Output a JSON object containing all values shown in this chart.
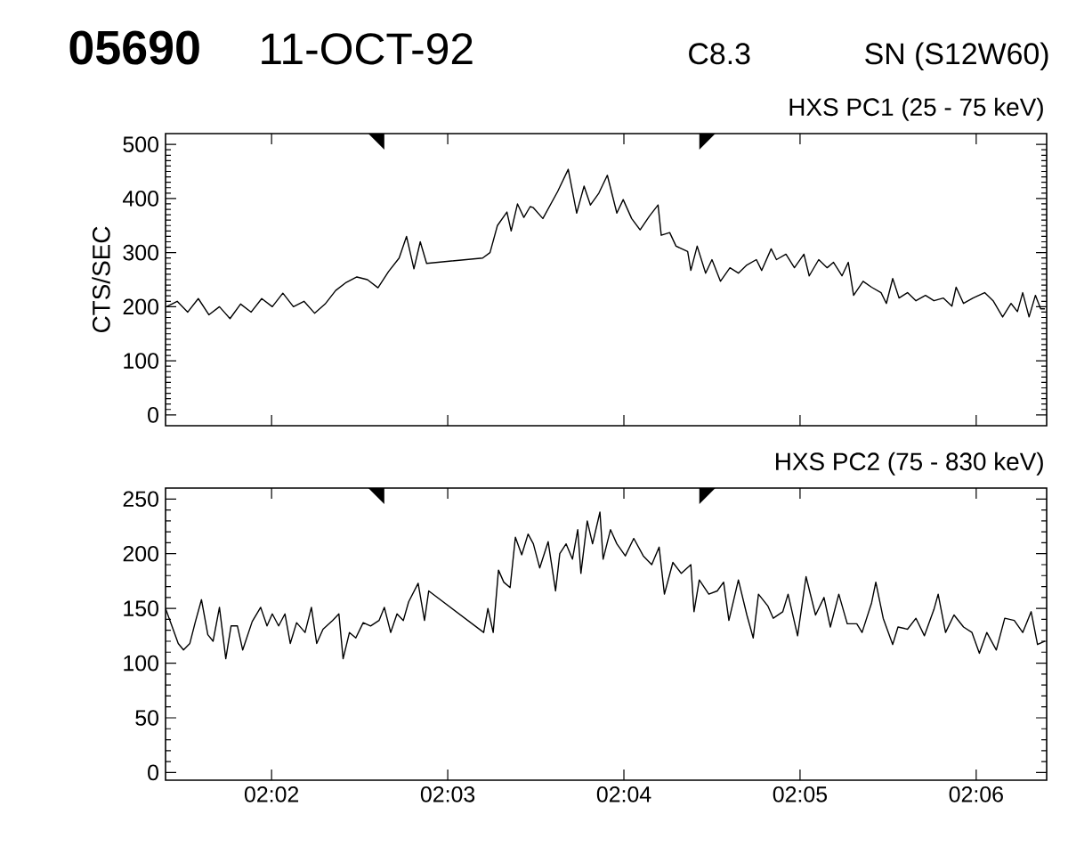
{
  "chart_data": [
    {
      "type": "line",
      "title": "HXS PC1 (25 - 75 keV)",
      "ylabel": "CTS/SEC",
      "annotations": [
        "05690",
        "11-OCT-92",
        "C8.3",
        "SN (S12W60)"
      ],
      "xlim": [
        2.0233,
        2.106667
      ],
      "xticks": [
        {
          "value": 2.033333,
          "label": null
        },
        {
          "value": 2.05,
          "label": null
        },
        {
          "value": 2.066667,
          "label": null
        },
        {
          "value": 2.083333,
          "label": null
        },
        {
          "value": 2.1,
          "label": null
        }
      ],
      "ylim": [
        -20,
        520
      ],
      "yticks": [
        0,
        100,
        200,
        300,
        400,
        500
      ],
      "tick_labels": "y",
      "marker": "none",
      "line_style": "solid",
      "series": [
        {
          "color": "#000000",
          "x": [
            2.0234,
            2.0244,
            2.0254,
            2.0264,
            2.0274,
            2.0284,
            2.0294,
            2.0304,
            2.0314,
            2.0324,
            2.0334,
            2.0344,
            2.0354,
            2.0364,
            2.0374,
            2.0384,
            2.0394,
            2.0404,
            2.0414,
            2.0424,
            2.0434,
            2.0444,
            2.0454,
            2.0461,
            2.0468,
            2.0474,
            2.048,
            2.0533,
            2.054,
            2.0547,
            2.0556,
            2.056,
            2.0566,
            2.0572,
            2.0578,
            2.0581,
            2.059,
            2.0604,
            2.0614,
            2.0622,
            2.0629,
            2.0635,
            2.0643,
            2.0651,
            2.066,
            2.0666,
            2.0674,
            2.0682,
            2.0691,
            2.0699,
            2.0702,
            2.071,
            2.0716,
            2.0727,
            2.073,
            2.0736,
            2.0744,
            2.075,
            2.0758,
            2.0767,
            2.0775,
            2.0783,
            2.0792,
            2.0797,
            2.0806,
            2.0811,
            2.082,
            2.0828,
            2.0837,
            2.0842,
            2.0851,
            2.0859,
            2.0865,
            2.0873,
            2.0879,
            2.0884,
            2.0893,
            2.0901,
            2.091,
            2.0915,
            2.0921,
            2.0927,
            2.0935,
            2.0943,
            2.0952,
            2.096,
            2.0969,
            2.0977,
            2.0981,
            2.0988,
            2.0997,
            2.1008,
            2.1016,
            2.1025,
            2.1033,
            2.1039,
            2.1044,
            2.105,
            2.1056,
            2.1061,
            2.1065
          ],
          "values": [
            200,
            210,
            190,
            215,
            185,
            200,
            178,
            205,
            190,
            215,
            200,
            225,
            200,
            210,
            188,
            205,
            230,
            245,
            255,
            250,
            235,
            265,
            290,
            330,
            270,
            320,
            280,
            290,
            300,
            350,
            375,
            340,
            390,
            365,
            385,
            383,
            363,
            413,
            454,
            373,
            423,
            388,
            410,
            443,
            373,
            398,
            363,
            342,
            368,
            388,
            332,
            337,
            312,
            302,
            267,
            312,
            262,
            287,
            247,
            272,
            262,
            277,
            287,
            267,
            307,
            287,
            297,
            272,
            297,
            257,
            287,
            272,
            282,
            257,
            282,
            221,
            247,
            236,
            226,
            206,
            252,
            216,
            226,
            211,
            221,
            211,
            216,
            201,
            236,
            206,
            216,
            226,
            211,
            181,
            206,
            191,
            226,
            181,
            221,
            196,
            196
          ]
        }
      ]
    },
    {
      "type": "line",
      "title": "HXS PC2 (75 - 830 keV)",
      "xlim": [
        2.0233,
        2.106667
      ],
      "xticks": [
        {
          "value": 2.033333,
          "label": "02:02"
        },
        {
          "value": 2.05,
          "label": "02:03"
        },
        {
          "value": 2.066667,
          "label": "02:04"
        },
        {
          "value": 2.083333,
          "label": "02:05"
        },
        {
          "value": 2.1,
          "label": "02:06"
        }
      ],
      "ylim": [
        -7,
        260
      ],
      "yticks": [
        0,
        50,
        100,
        150,
        200,
        250
      ],
      "marker": "none",
      "line_style": "solid",
      "series": [
        {
          "color": "#000000",
          "x": [
            2.0233,
            2.0239,
            2.0245,
            2.025,
            2.0256,
            2.0261,
            2.0267,
            2.0273,
            2.0278,
            2.0284,
            2.029,
            2.0295,
            2.0301,
            2.0306,
            2.0315,
            2.0323,
            2.0329,
            2.0334,
            2.034,
            2.0346,
            2.0351,
            2.0357,
            2.0365,
            2.0371,
            2.0376,
            2.0382,
            2.0391,
            2.0397,
            2.0401,
            2.0407,
            2.0413,
            2.042,
            2.0427,
            2.0435,
            2.044,
            2.0446,
            2.0452,
            2.0458,
            2.0463,
            2.0472,
            2.0478,
            2.0482,
            2.0534,
            2.0538,
            2.0543,
            2.0548,
            2.0553,
            2.0559,
            2.0564,
            2.057,
            2.0576,
            2.0581,
            2.0587,
            2.0595,
            2.0602,
            2.0606,
            2.0612,
            2.0618,
            2.0623,
            2.0626,
            2.0632,
            2.0637,
            2.0644,
            2.0647,
            2.0654,
            2.066,
            2.0668,
            2.0676,
            2.0685,
            2.0693,
            2.07,
            2.0705,
            2.0713,
            2.0721,
            2.073,
            2.0733,
            2.0738,
            2.0747,
            2.0755,
            2.0761,
            2.0766,
            2.0775,
            2.0783,
            2.0789,
            2.0794,
            2.0803,
            2.0808,
            2.0817,
            2.0822,
            2.0831,
            2.0839,
            2.0848,
            2.0856,
            2.0862,
            2.087,
            2.0878,
            2.0887,
            2.0892,
            2.0901,
            2.0905,
            2.0912,
            2.0921,
            2.0926,
            2.0935,
            2.0943,
            2.0951,
            2.096,
            2.0964,
            2.0971,
            2.0979,
            2.0988,
            2.0996,
            2.1003,
            2.101,
            2.1019,
            2.1027,
            2.1036,
            2.1044,
            2.1052,
            2.1058,
            2.1065
          ],
          "values": [
            150,
            134,
            118,
            112,
            118,
            137,
            158,
            126,
            120,
            151,
            104,
            134,
            134,
            112,
            138,
            151,
            134,
            145,
            134,
            145,
            118,
            137,
            128,
            151,
            118,
            131,
            139,
            145,
            104,
            128,
            123,
            137,
            134,
            139,
            151,
            128,
            145,
            139,
            156,
            173,
            139,
            166,
            128,
            150,
            128,
            185,
            174,
            169,
            215,
            199,
            218,
            209,
            187,
            211,
            166,
            200,
            209,
            195,
            222,
            182,
            230,
            209,
            238,
            195,
            222,
            209,
            198,
            214,
            198,
            190,
            206,
            163,
            192,
            182,
            190,
            147,
            176,
            163,
            166,
            174,
            139,
            176,
            144,
            123,
            163,
            152,
            141,
            147,
            163,
            125,
            179,
            144,
            160,
            133,
            163,
            136,
            136,
            128,
            155,
            174,
            141,
            117,
            133,
            131,
            141,
            125,
            149,
            163,
            128,
            144,
            133,
            128,
            109,
            128,
            112,
            141,
            139,
            128,
            147,
            117,
            120
          ]
        }
      ]
    }
  ]
}
